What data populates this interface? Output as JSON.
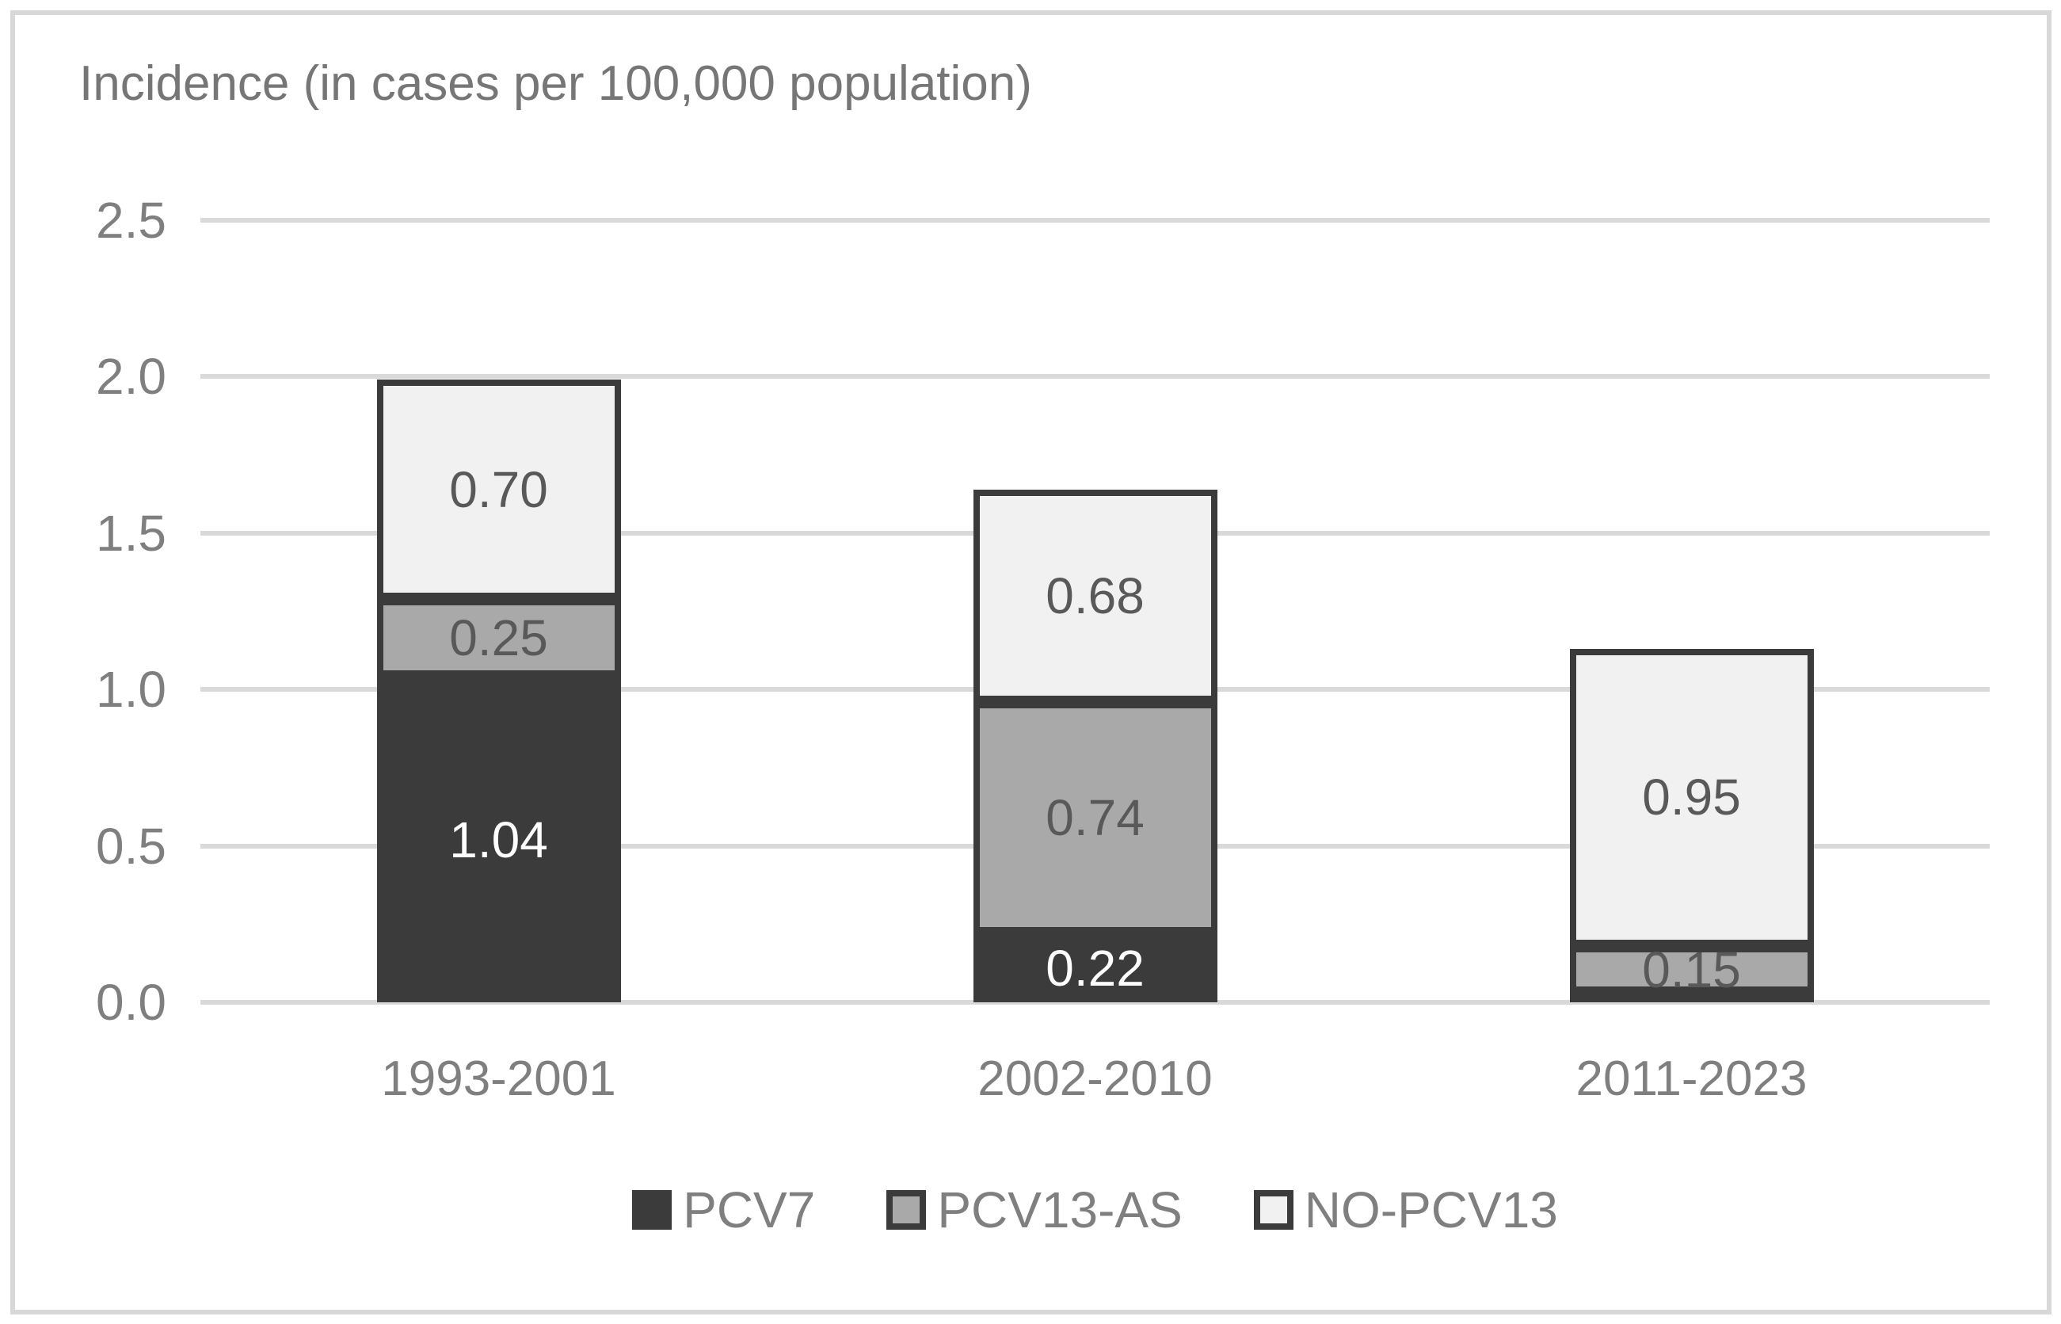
{
  "figure": {
    "title": "Incidence (in cases per 100,000 population)"
  },
  "chart_data": {
    "type": "bar",
    "stacked": true,
    "title": "Incidence (in cases per 100,000 population)",
    "ylabel": "Incidence (in cases per 100,000 population)",
    "xlabel": "",
    "categories": [
      "1993-2001",
      "2002-2010",
      "2011-2023"
    ],
    "series": [
      {
        "name": "PCV7",
        "values": [
          1.04,
          0.22,
          0.03
        ],
        "data_labels": [
          "1.04",
          "0.22",
          ""
        ],
        "fill": "#3b3b3b",
        "label_color": "#ffffff"
      },
      {
        "name": "PCV13-AS",
        "values": [
          0.25,
          0.74,
          0.15
        ],
        "data_labels": [
          "0.25",
          "0.74",
          "0.15"
        ],
        "fill": "#a9a9a9",
        "label_color": "#595959"
      },
      {
        "name": "NO-PCV13",
        "values": [
          0.7,
          0.68,
          0.95
        ],
        "data_labels": [
          "0.70",
          "0.68",
          "0.95"
        ],
        "fill": "#f1f1f1",
        "label_color": "#595959"
      }
    ],
    "stack_totals": [
      1.99,
      1.64,
      1.13
    ],
    "y_axis": {
      "min": 0,
      "max": 2.5,
      "tick_labels": [
        "0.0",
        "0.5",
        "1.0",
        "1.5",
        "2.0",
        "2.5"
      ],
      "tick_values": [
        0,
        0.5,
        1.0,
        1.5,
        2.0,
        2.5
      ]
    },
    "legend": {
      "position": "bottom",
      "entries": [
        "PCV7",
        "PCV13-AS",
        "NO-PCV13"
      ]
    },
    "grid": true
  },
  "colors": {
    "segment_border": "#3b3b3b",
    "gridline": "#d9d9d9",
    "axis_text": "#7f7f7f",
    "title_text": "#767676",
    "value_text_dark": "#595959",
    "value_text_light": "#ffffff",
    "frame_border": "#d8d8d8",
    "background": "#ffffff"
  }
}
